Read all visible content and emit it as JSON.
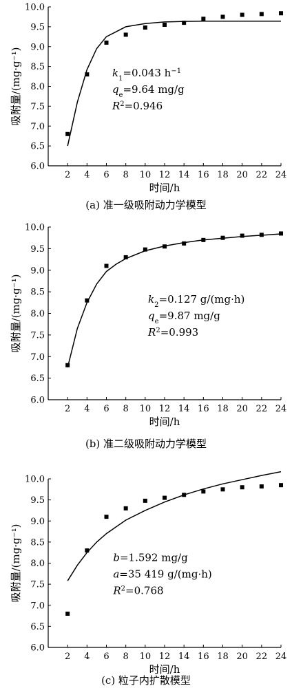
{
  "chart_data": [
    {
      "type": "scatter",
      "caption": "(a) 准一级吸附动力学模型",
      "xlabel": "时间/h",
      "ylabel": "吸附量/(mg·g⁻¹)",
      "xlim": [
        0,
        24
      ],
      "ylim": [
        6.0,
        10.0
      ],
      "xticks": [
        2,
        4,
        6,
        8,
        10,
        12,
        14,
        16,
        18,
        20,
        22,
        24
      ],
      "yticks": [
        6.0,
        6.5,
        7.0,
        7.5,
        8.0,
        8.5,
        9.0,
        9.5,
        10.0
      ],
      "points": {
        "x": [
          2,
          4,
          6,
          8,
          10,
          12,
          14,
          16,
          18,
          20,
          22,
          24
        ],
        "y": [
          6.8,
          8.3,
          9.1,
          9.3,
          9.48,
          9.55,
          9.6,
          9.7,
          9.75,
          9.8,
          9.82,
          9.84
        ]
      },
      "fit": {
        "x": [
          2,
          3,
          4,
          5,
          6,
          8,
          10,
          12,
          14,
          16,
          18,
          20,
          22,
          24
        ],
        "y": [
          6.5,
          7.6,
          8.42,
          8.95,
          9.25,
          9.5,
          9.58,
          9.62,
          9.635,
          9.64,
          9.64,
          9.64,
          9.64,
          9.64
        ]
      },
      "annotations": [
        {
          "sym": "k",
          "sub": "1",
          "val": "=0.043 h",
          "sup": "−1"
        },
        {
          "sym": "q",
          "sub": "e",
          "val": "=9.64 mg/g",
          "sup": ""
        },
        {
          "sym": "R",
          "sub": "",
          "sup": "2",
          "val": "=0.946"
        }
      ]
    },
    {
      "type": "scatter",
      "caption": "(b) 准二级吸附动力学模型",
      "xlabel": "时间/h",
      "ylabel": "吸附量/(mg·g⁻¹)",
      "xlim": [
        0,
        24
      ],
      "ylim": [
        6.0,
        10.0
      ],
      "xticks": [
        2,
        4,
        6,
        8,
        10,
        12,
        14,
        16,
        18,
        20,
        22,
        24
      ],
      "yticks": [
        6.0,
        6.5,
        7.0,
        7.5,
        8.0,
        8.5,
        9.0,
        9.5,
        10.0
      ],
      "points": {
        "x": [
          2,
          4,
          6,
          8,
          10,
          12,
          14,
          16,
          18,
          20,
          22,
          24
        ],
        "y": [
          6.8,
          8.3,
          9.1,
          9.3,
          9.48,
          9.55,
          9.62,
          9.7,
          9.75,
          9.8,
          9.82,
          9.85
        ]
      },
      "fit": {
        "x": [
          2,
          3,
          4,
          5,
          6,
          7,
          8,
          10,
          12,
          14,
          16,
          18,
          20,
          22,
          24
        ],
        "y": [
          6.75,
          7.65,
          8.25,
          8.68,
          8.97,
          9.14,
          9.27,
          9.45,
          9.56,
          9.64,
          9.7,
          9.74,
          9.78,
          9.81,
          9.84
        ]
      },
      "annotations": [
        {
          "sym": "k",
          "sub": "2",
          "val": "=0.127 g/(mg·h)",
          "sup": ""
        },
        {
          "sym": "q",
          "sub": "e",
          "val": "=9.87 mg/g",
          "sup": ""
        },
        {
          "sym": "R",
          "sub": "",
          "sup": "2",
          "val": "=0.993"
        }
      ]
    },
    {
      "type": "scatter",
      "caption": "(c) 粒子内扩散模型",
      "xlabel": "时间/h",
      "ylabel": "吸附量/(mg·g⁻¹)",
      "xlim": [
        0,
        24
      ],
      "ylim": [
        6.0,
        10.0
      ],
      "xticks": [
        2,
        4,
        6,
        8,
        10,
        12,
        14,
        16,
        18,
        20,
        22,
        24
      ],
      "yticks": [
        6.0,
        6.5,
        7.0,
        7.5,
        8.0,
        8.5,
        9.0,
        9.5,
        10.0
      ],
      "points": {
        "x": [
          2,
          4,
          6,
          8,
          10,
          12,
          14,
          16,
          18,
          20,
          22,
          24
        ],
        "y": [
          6.8,
          8.3,
          9.1,
          9.3,
          9.48,
          9.55,
          9.62,
          9.7,
          9.75,
          9.8,
          9.82,
          9.85
        ]
      },
      "fit": {
        "x": [
          2,
          3,
          4,
          5,
          6,
          8,
          10,
          12,
          14,
          16,
          18,
          20,
          22,
          24
        ],
        "y": [
          7.58,
          7.95,
          8.25,
          8.5,
          8.7,
          9.02,
          9.25,
          9.45,
          9.62,
          9.76,
          9.88,
          9.98,
          10.08,
          10.17
        ]
      },
      "annotations": [
        {
          "sym": "b",
          "sub": "",
          "val": "=1.592 mg/g",
          "sup": ""
        },
        {
          "sym": "a",
          "sub": "",
          "val": "=35 419 g/(mg·h)",
          "sup": ""
        },
        {
          "sym": "R",
          "sub": "",
          "sup": "2",
          "val": "=0.768"
        }
      ]
    }
  ]
}
